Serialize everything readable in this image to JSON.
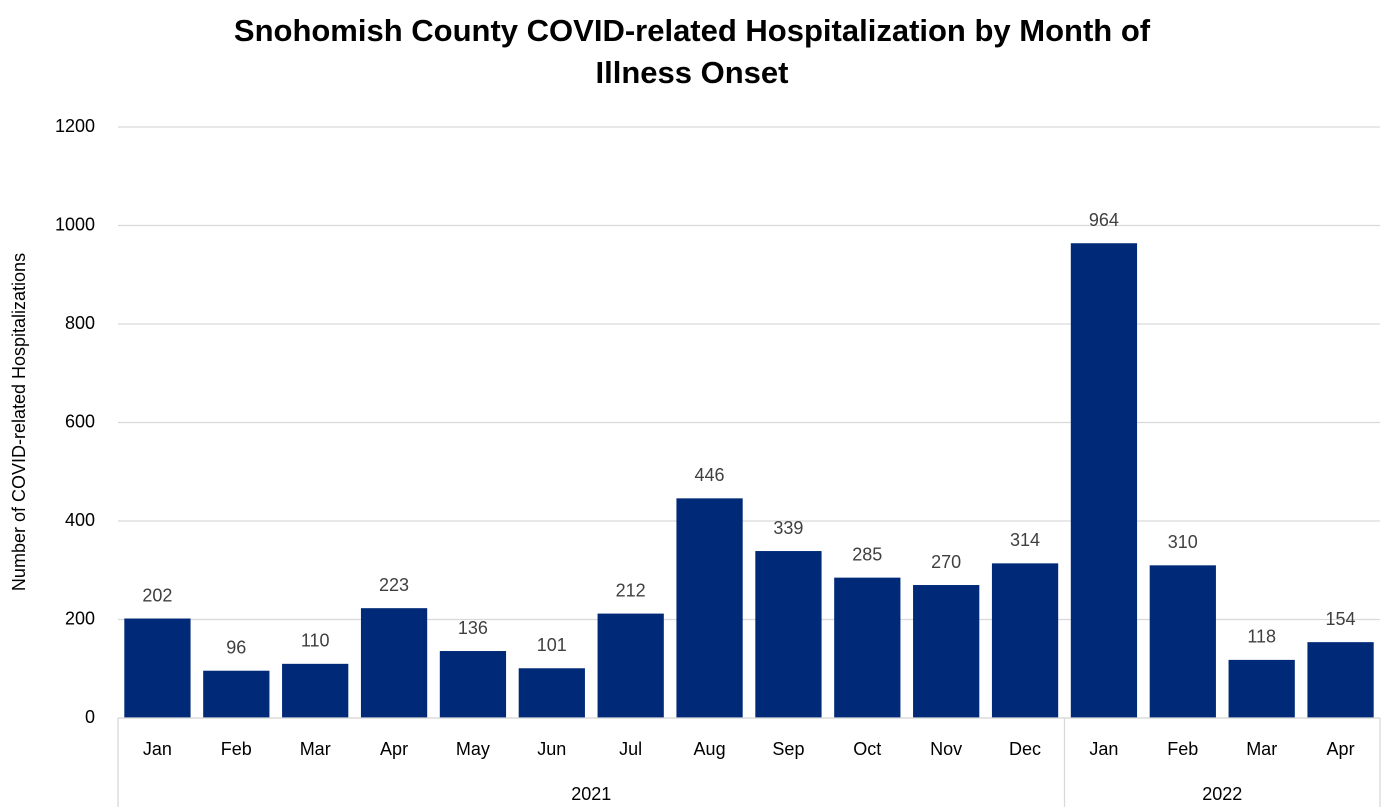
{
  "chart_data": {
    "type": "bar",
    "title": "Snohomish County COVID-related Hospitalization by Month of Illness Onset",
    "y_label": "Number of COVID-related Hospitalizations",
    "groups": [
      {
        "name": "2021",
        "categories": [
          "Jan",
          "Feb",
          "Mar",
          "Apr",
          "May",
          "Jun",
          "Jul",
          "Aug",
          "Sep",
          "Oct",
          "Nov",
          "Dec"
        ],
        "values": [
          202,
          96,
          110,
          223,
          136,
          101,
          212,
          446,
          339,
          285,
          270,
          314
        ]
      },
      {
        "name": "2022",
        "categories": [
          "Jan",
          "Feb",
          "Mar",
          "Apr"
        ],
        "values": [
          964,
          310,
          118,
          154
        ]
      }
    ],
    "color": "#002a78",
    "ylim": [
      0,
      1200
    ],
    "yticks": [
      0,
      200,
      400,
      600,
      800,
      1000,
      1200
    ],
    "grid": true
  }
}
